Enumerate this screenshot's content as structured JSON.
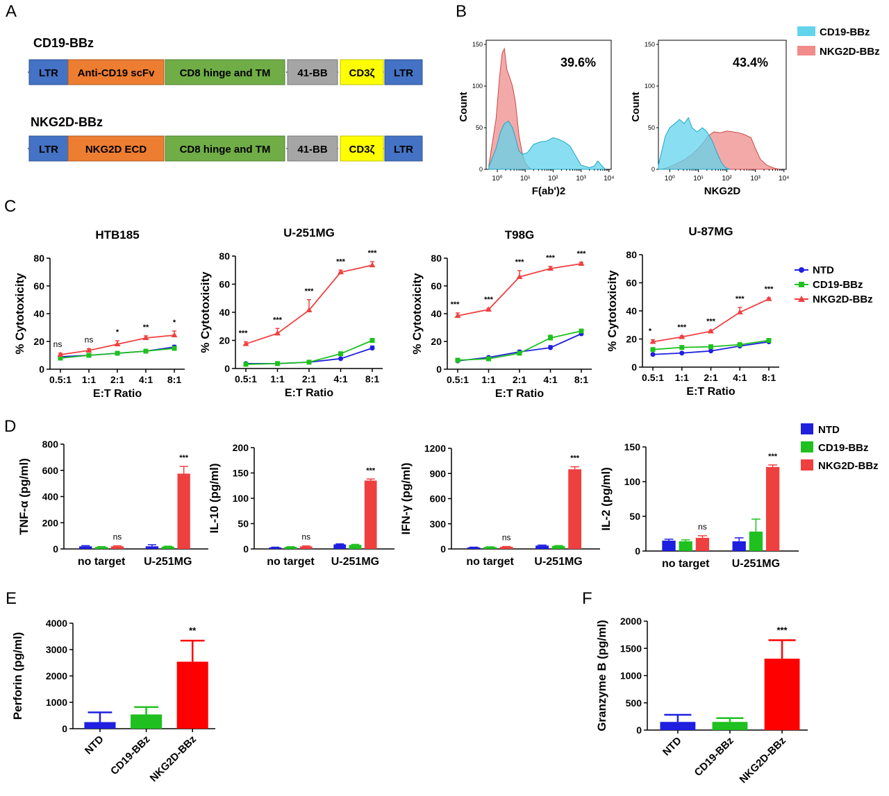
{
  "panel_letters": [
    "A",
    "B",
    "C",
    "D",
    "E",
    "F"
  ],
  "panel_a": {
    "constructs": [
      {
        "name": "CD19-BBz",
        "segments": [
          {
            "label": "LTR",
            "color": "#4472c4"
          },
          {
            "label": "Anti-CD19 scFv",
            "color": "#ed7d31"
          },
          {
            "label": "CD8 hinge and TM",
            "color": "#70ad47"
          },
          {
            "label": "41-BB",
            "color": "#a5a5a5"
          },
          {
            "label": "CD3ζ",
            "color": "#ffff00"
          },
          {
            "label": "LTR",
            "color": "#4472c4"
          }
        ]
      },
      {
        "name": "NKG2D-BBz",
        "segments": [
          {
            "label": "LTR",
            "color": "#4472c4"
          },
          {
            "label": "NKG2D ECD",
            "color": "#ed7d31"
          },
          {
            "label": "CD8 hinge and TM",
            "color": "#70ad47"
          },
          {
            "label": "41-BB",
            "color": "#a5a5a5"
          },
          {
            "label": "CD3ζ",
            "color": "#ffff00"
          },
          {
            "label": "LTR",
            "color": "#4472c4"
          }
        ]
      }
    ]
  },
  "colors": {
    "NTD": "#1f1fe0",
    "CD19-BBz": "#1fc01f",
    "NKG2D-BBz": "#ef4040",
    "bar_red_bright": "#ff0000",
    "hist_cd19": "#62d4ec",
    "hist_nkg2d": "#f08c8c"
  },
  "chart_data": [
    {
      "panel": "B",
      "type": "area",
      "xlabel": "F(ab')2",
      "ylabel": "Count",
      "x_scale": "log",
      "x_ticks": [
        "10⁰",
        "10¹",
        "10²",
        "10³",
        "10⁴"
      ],
      "y_ticks": [
        0,
        50,
        100,
        150
      ],
      "ylim": [
        0,
        150
      ],
      "annotation": "39.6%",
      "series": [
        {
          "name": "CD19-BBz",
          "x": [
            0.5,
            0.9,
            1.3,
            1.8,
            2.5,
            3.5,
            4.5,
            6,
            8,
            12,
            20,
            35,
            60,
            100,
            160,
            250,
            400,
            700,
            1000,
            2000,
            3000,
            4000,
            5000,
            7000
          ],
          "y": [
            3,
            25,
            45,
            55,
            58,
            50,
            38,
            22,
            18,
            20,
            30,
            33,
            34,
            38,
            36,
            33,
            28,
            14,
            5,
            2,
            4,
            10,
            6,
            1
          ]
        },
        {
          "name": "NKG2D-BBz",
          "x": [
            0.5,
            0.9,
            1.2,
            1.5,
            1.8,
            2.2,
            2.8,
            3.5,
            4.5,
            6,
            8,
            10,
            13,
            17
          ],
          "y": [
            5,
            60,
            110,
            140,
            145,
            120,
            110,
            100,
            80,
            40,
            18,
            8,
            3,
            0
          ]
        }
      ]
    },
    {
      "panel": "B",
      "type": "area",
      "xlabel": "NKG2D",
      "ylabel": "Count",
      "x_scale": "log",
      "x_ticks": [
        "10⁰",
        "10¹",
        "10²",
        "10³",
        "10⁴"
      ],
      "y_ticks": [
        0,
        50,
        100,
        150
      ],
      "ylim": [
        0,
        150
      ],
      "annotation": "43.4%",
      "series": [
        {
          "name": "CD19-BBz",
          "x": [
            0.4,
            0.7,
            1.0,
            1.5,
            2.2,
            3.2,
            4.5,
            6,
            9,
            14,
            20,
            30,
            45,
            65,
            90,
            130
          ],
          "y": [
            5,
            40,
            50,
            55,
            60,
            55,
            62,
            50,
            45,
            50,
            45,
            35,
            20,
            8,
            2,
            0
          ]
        },
        {
          "name": "NKG2D-BBz",
          "x": [
            0.5,
            1.0,
            2.0,
            3.5,
            6,
            10,
            15,
            22,
            35,
            60,
            100,
            160,
            250,
            400,
            700,
            1000,
            1500,
            2500,
            4000,
            7000
          ],
          "y": [
            0,
            3,
            8,
            12,
            18,
            25,
            32,
            40,
            45,
            44,
            46,
            45,
            44,
            42,
            38,
            25,
            12,
            5,
            2,
            0
          ]
        }
      ]
    },
    {
      "panel": "C",
      "type": "line",
      "title": "HTB185",
      "xlabel": "E:T Ratio",
      "ylabel": "% Cytotoxicity",
      "categories": [
        "0.5:1",
        "1:1",
        "2:1",
        "4:1",
        "8:1"
      ],
      "ylim": [
        0,
        80
      ],
      "y_ticks": [
        0,
        20,
        40,
        60,
        80
      ],
      "series": [
        {
          "name": "NTD",
          "values": [
            9,
            10,
            11.5,
            13,
            16
          ],
          "errors": [
            0.5,
            0.5,
            0.8,
            0.8,
            1.2
          ]
        },
        {
          "name": "CD19-BBz",
          "values": [
            8,
            10,
            11.5,
            13,
            15
          ],
          "errors": [
            0.5,
            0.5,
            0.6,
            0.6,
            0.8
          ]
        },
        {
          "name": "NKG2D-BBz",
          "values": [
            10.5,
            13.5,
            18,
            22.5,
            24.5
          ],
          "errors": [
            1,
            1.2,
            2.5,
            1.5,
            3
          ]
        }
      ],
      "significance": [
        "ns",
        "ns",
        "*",
        "**",
        "*"
      ]
    },
    {
      "panel": "C",
      "type": "line",
      "title": "U-251MG",
      "xlabel": "E:T Ratio",
      "ylabel": "% Cytotoxicity",
      "categories": [
        "0.5:1",
        "1:1",
        "2:1",
        "4:1",
        "8:1"
      ],
      "ylim": [
        0,
        80
      ],
      "y_ticks": [
        0,
        20,
        40,
        60,
        80
      ],
      "series": [
        {
          "name": "NTD",
          "values": [
            3.5,
            3.5,
            4.5,
            7,
            14.5
          ],
          "errors": [
            0.5,
            0.5,
            0.5,
            0.5,
            1.5
          ]
        },
        {
          "name": "CD19-BBz",
          "values": [
            3,
            3.5,
            4.5,
            10.5,
            20
          ],
          "errors": [
            0.5,
            0.5,
            0.5,
            0.8,
            1
          ]
        },
        {
          "name": "NKG2D-BBz",
          "values": [
            17.5,
            25,
            41.5,
            68.5,
            73.5
          ],
          "errors": [
            1.5,
            3.5,
            7.5,
            1.5,
            2.5
          ]
        }
      ],
      "significance": [
        "***",
        "***",
        "***",
        "***",
        "***"
      ]
    },
    {
      "panel": "C",
      "type": "line",
      "title": "T98G",
      "xlabel": "E:T Ratio",
      "ylabel": "% Cytotoxicity",
      "categories": [
        "0.5:1",
        "1:1",
        "2:1",
        "4:1",
        "8:1"
      ],
      "ylim": [
        0,
        80
      ],
      "y_ticks": [
        0,
        20,
        40,
        60,
        80
      ],
      "series": [
        {
          "name": "NTD",
          "values": [
            6,
            8.5,
            12.5,
            15.5,
            25.5
          ],
          "errors": [
            0.5,
            0.8,
            1.2,
            1.5,
            1.2
          ]
        },
        {
          "name": "CD19-BBz",
          "values": [
            6.5,
            7.5,
            11.5,
            22.5,
            27.5
          ],
          "errors": [
            0.5,
            0.5,
            0.8,
            2,
            0.8
          ]
        },
        {
          "name": "NKG2D-BBz",
          "values": [
            38.5,
            43,
            66.5,
            72.5,
            76
          ],
          "errors": [
            2,
            1,
            4.5,
            1.5,
            1
          ]
        }
      ],
      "significance": [
        "***",
        "***",
        "***",
        "***",
        "***"
      ]
    },
    {
      "panel": "C",
      "type": "line",
      "title": "U-87MG",
      "xlabel": "E:T Ratio",
      "ylabel": "% Cytotoxicity",
      "categories": [
        "0.5:1",
        "1:1",
        "2:1",
        "4:1",
        "8:1"
      ],
      "ylim": [
        0,
        80
      ],
      "y_ticks": [
        0,
        20,
        40,
        60,
        80
      ],
      "series": [
        {
          "name": "NTD",
          "values": [
            9,
            10,
            11.5,
            15,
            18
          ],
          "errors": [
            0.5,
            0.5,
            0.5,
            0.8,
            1
          ]
        },
        {
          "name": "CD19-BBz",
          "values": [
            12.5,
            14,
            14.5,
            16,
            19
          ],
          "errors": [
            0.5,
            0.5,
            0.5,
            0.8,
            0.8
          ]
        },
        {
          "name": "NKG2D-BBz",
          "values": [
            18,
            21.5,
            25.5,
            39,
            48.5
          ],
          "errors": [
            1.5,
            0.8,
            0.8,
            3.5,
            0.8
          ]
        }
      ],
      "significance": [
        "*",
        "***",
        "***",
        "***",
        "***"
      ]
    },
    {
      "panel": "D",
      "type": "bar",
      "ylabel": "TNF-α (pg/ml)",
      "categories": [
        "no target",
        "U-251MG"
      ],
      "ylim": [
        0,
        800
      ],
      "y_ticks": [
        0,
        200,
        400,
        600,
        800
      ],
      "series": [
        {
          "name": "NTD",
          "values": [
            20,
            20
          ],
          "errors": [
            5,
            12
          ]
        },
        {
          "name": "CD19-BBz",
          "values": [
            15,
            18
          ],
          "errors": [
            3,
            3
          ]
        },
        {
          "name": "NKG2D-BBz",
          "values": [
            20,
            575
          ],
          "errors": [
            4,
            55
          ]
        }
      ],
      "significance": [
        "ns",
        "***"
      ]
    },
    {
      "panel": "D",
      "type": "bar",
      "ylabel": "IL-10 (pg/ml)",
      "categories": [
        "no target",
        "U-251MG"
      ],
      "ylim": [
        0,
        200
      ],
      "y_ticks": [
        0,
        50,
        100,
        150,
        200
      ],
      "series": [
        {
          "name": "NTD",
          "values": [
            3,
            9
          ],
          "errors": [
            0.5,
            1
          ]
        },
        {
          "name": "CD19-BBz",
          "values": [
            4,
            8
          ],
          "errors": [
            0.5,
            1
          ]
        },
        {
          "name": "NKG2D-BBz",
          "values": [
            5,
            135
          ],
          "errors": [
            1,
            3
          ]
        }
      ],
      "significance": [
        "ns",
        "***"
      ]
    },
    {
      "panel": "D",
      "type": "bar",
      "ylabel": "IFN-γ (pg/ml)",
      "categories": [
        "no target",
        "U-251MG"
      ],
      "ylim": [
        0,
        1200
      ],
      "y_ticks": [
        0,
        300,
        600,
        900,
        1200
      ],
      "series": [
        {
          "name": "NTD",
          "values": [
            18,
            40
          ],
          "errors": [
            3,
            6
          ]
        },
        {
          "name": "CD19-BBz",
          "values": [
            22,
            35
          ],
          "errors": [
            3,
            5
          ]
        },
        {
          "name": "NKG2D-BBz",
          "values": [
            25,
            950
          ],
          "errors": [
            4,
            30
          ]
        }
      ],
      "significance": [
        "ns",
        "***"
      ]
    },
    {
      "panel": "D",
      "type": "bar",
      "ylabel": "IL-2 (pg/ml)",
      "categories": [
        "no target",
        "U-251MG"
      ],
      "ylim": [
        0,
        150
      ],
      "y_ticks": [
        0,
        50,
        100,
        150
      ],
      "series": [
        {
          "name": "NTD",
          "values": [
            15,
            14
          ],
          "errors": [
            2,
            5
          ]
        },
        {
          "name": "CD19-BBz",
          "values": [
            14,
            28
          ],
          "errors": [
            2,
            18
          ]
        },
        {
          "name": "NKG2D-BBz",
          "values": [
            19,
            121
          ],
          "errors": [
            3,
            3
          ]
        }
      ],
      "significance": [
        "ns",
        "***"
      ]
    },
    {
      "panel": "E",
      "type": "bar",
      "ylabel": "Perforin (pg/ml)",
      "categories": [
        "NTD",
        "CD19-BBz",
        "NKG2D-BBz"
      ],
      "ylim": [
        0,
        4000
      ],
      "y_ticks": [
        0,
        1000,
        2000,
        3000,
        4000
      ],
      "values": [
        250,
        540,
        2540
      ],
      "errors": [
        370,
        280,
        800
      ],
      "significance": [
        "",
        "",
        "**"
      ]
    },
    {
      "panel": "F",
      "type": "bar",
      "ylabel": "Granzyme B (pg/ml)",
      "categories": [
        "NTD",
        "CD19-BBz",
        "NKG2D-BBz"
      ],
      "ylim": [
        0,
        2000
      ],
      "y_ticks": [
        0,
        500,
        1000,
        1500,
        2000
      ],
      "values": [
        150,
        150,
        1310
      ],
      "errors": [
        130,
        70,
        340
      ],
      "significance": [
        "",
        "",
        "***"
      ]
    }
  ],
  "legends": {
    "B": [
      "CD19-BBz",
      "NKG2D-BBz"
    ],
    "C": [
      "NTD",
      "CD19-BBz",
      "NKG2D-BBz"
    ],
    "D": [
      "NTD",
      "CD19-BBz",
      "NKG2D-BBz"
    ]
  }
}
